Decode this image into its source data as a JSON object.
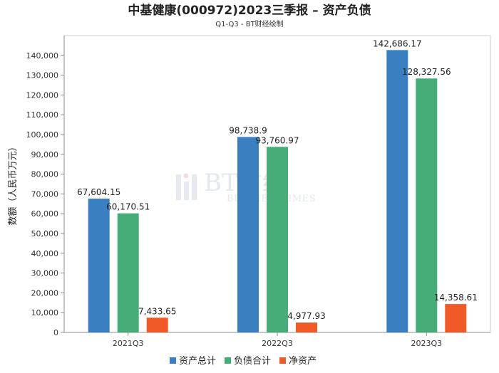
{
  "chart_data": {
    "type": "bar",
    "title": "中基健康(000972)2023三季报 – 资产负债",
    "subtitle": "Q1-Q3 - BT财经绘制",
    "xlabel": "",
    "ylabel": "数额（人民币万元）",
    "categories": [
      "2021Q3",
      "2022Q3",
      "2023Q3"
    ],
    "series": [
      {
        "name": "资产总计",
        "color": "#3a80c0",
        "values": [
          67604.15,
          98738.9,
          142686.17
        ]
      },
      {
        "name": "负债合计",
        "color": "#46ad79",
        "values": [
          60170.51,
          93760.97,
          128327.56
        ]
      },
      {
        "name": "净资产",
        "color": "#f05a28",
        "values": [
          7433.65,
          4977.93,
          14358.61
        ]
      }
    ],
    "ylim": [
      0,
      150000
    ],
    "yticks": [
      0,
      10000,
      20000,
      30000,
      40000,
      50000,
      60000,
      70000,
      80000,
      90000,
      100000,
      110000,
      120000,
      130000,
      140000
    ],
    "grid": false,
    "legend": "bottom-center",
    "data_labels": true
  },
  "watermark": {
    "text": "BT财经",
    "subtext": "BUSINESSTIMES"
  }
}
